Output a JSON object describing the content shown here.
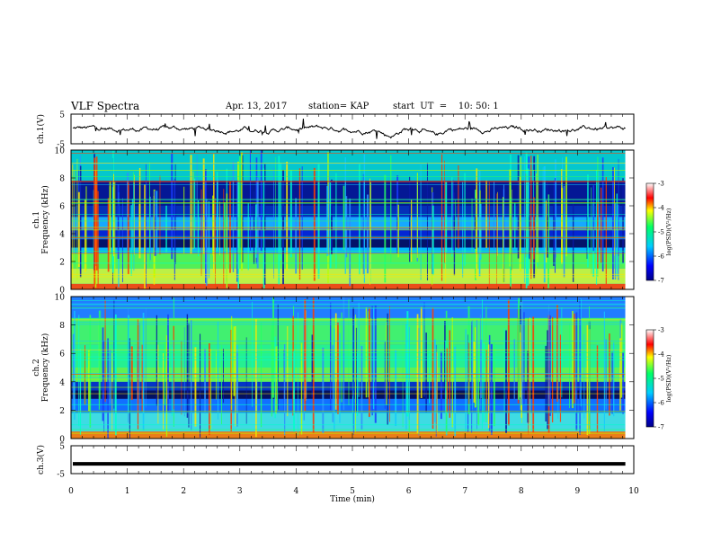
{
  "header": {
    "title": "VLF Spectra",
    "date": "Apr. 13, 2017",
    "station": "station= KAP",
    "start": "start  UT  =    10: 50: 1"
  },
  "chart_data": {
    "type": "heatmap",
    "x_label": "Time  (min)",
    "x_range": [
      0,
      10
    ],
    "x_ticks": [
      "0",
      "1",
      "2",
      "3",
      "4",
      "5",
      "6",
      "7",
      "8",
      "9",
      "10"
    ],
    "data_end_min": 9.85,
    "panels": [
      {
        "kind": "waveform",
        "ylabel": "ch.1(V)",
        "ylim": [
          -5,
          5
        ],
        "yticks": [
          "5",
          "-5"
        ]
      },
      {
        "kind": "spectrogram",
        "ylabel": "ch.1\nFrequency  (kHz)",
        "ylim": [
          0,
          10
        ],
        "yticks": [
          "0",
          "2",
          "4",
          "6",
          "8",
          "10"
        ],
        "colorbar": {
          "range": [
            -7,
            -3
          ],
          "ticks": [
            "-3",
            "-4",
            "-5",
            "-6",
            "-7"
          ],
          "label": "log(PSD)(V²/Hz)"
        }
      },
      {
        "kind": "spectrogram",
        "ylabel": "ch.2\nFrequency  (kHz)",
        "ylim": [
          0,
          10
        ],
        "yticks": [
          "0",
          "2",
          "4",
          "6",
          "8",
          "10"
        ],
        "colorbar": {
          "range": [
            -7,
            -3
          ],
          "ticks": [
            "-3",
            "-4",
            "-5",
            "-6",
            "-7"
          ],
          "label": "log(PSD)(V²/Hz)"
        }
      },
      {
        "kind": "waveform",
        "ylabel": "ch.3(V)",
        "ylim": [
          -5,
          5
        ],
        "yticks": [
          "5",
          "-5"
        ],
        "constant_value": -1.5
      }
    ]
  },
  "colors": {
    "axes": "#000000",
    "background": "#ffffff"
  }
}
